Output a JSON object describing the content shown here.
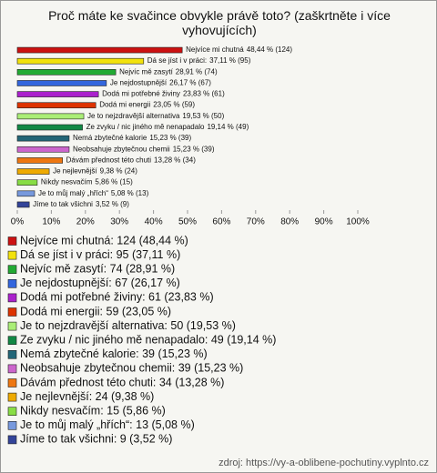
{
  "chart_data": {
    "type": "bar",
    "orientation": "horizontal",
    "title": "Proč máte ke svačince obvykle právě toto? (zaškrtněte i více vyhovujících)",
    "categories": [
      "Nejvíce mi chutná",
      "Dá se jíst i v práci:",
      "Nejvíc mě zasytí",
      "Je nejdostupnější",
      "Dodá mi potřebné živiny",
      "Dodá mi energii",
      "Je to nejzdravější alternativa",
      "Ze zvyku / nic jiného mě nenapadalo",
      "Nemá zbytečné kalorie",
      "Neobsahuje zbytečnou chemii",
      "Dávám přednost této chuti",
      "Je nejlevnější",
      "Nikdy nesvačím",
      "Je to můj malý „hřích“",
      "Jíme to tak všichni"
    ],
    "values": [
      48.44,
      37.11,
      28.91,
      26.17,
      23.83,
      23.05,
      19.53,
      19.14,
      15.23,
      15.23,
      13.28,
      9.38,
      5.86,
      5.08,
      3.52
    ],
    "value_labels": [
      "48,44 % (124)",
      "37,11 % (95)",
      "28,91 % (74)",
      "26,17 % (67)",
      "23,83 % (61)",
      "23,05 % (59)",
      "19,53 % (50)",
      "19,14 % (49)",
      "15,23 % (39)",
      "15,23 % (39)",
      "13,28 % (34)",
      "9,38 % (24)",
      "5,86 % (15)",
      "5,08 % (13)",
      "3,52 % (9)"
    ],
    "legend_labels": [
      "Nejvíce mi chutná: 124 (48,44 %)",
      "Dá se jíst i v práci: 95 (37,11 %)",
      "Nejvíc mě zasytí: 74 (28,91 %)",
      "Je nejdostupnější: 67 (26,17 %)",
      "Dodá mi potřebné živiny: 61 (23,83 %)",
      "Dodá mi energii: 59 (23,05 %)",
      "Je to nejzdravější alternativa: 50 (19,53 %)",
      "Ze zvyku / nic jiného mě nenapadalo: 49 (19,14 %)",
      "Nemá zbytečné kalorie: 39 (15,23 %)",
      "Neobsahuje zbytečnou chemii: 39 (15,23 %)",
      "Dávám přednost této chuti: 34 (13,28 %)",
      "Je nejlevnější: 24 (9,38 %)",
      "Nikdy nesvačím: 15 (5,86 %)",
      "Je to můj malý „hřích“: 13 (5,08 %)",
      "Jíme to tak všichni: 9 (3,52 %)"
    ],
    "colors": [
      "#cc1111",
      "#f2e20c",
      "#22aa33",
      "#3366dd",
      "#aa22cc",
      "#dd3300",
      "#aaee77",
      "#118844",
      "#226677",
      "#cc66cc",
      "#ee7711",
      "#eeaa00",
      "#88dd44",
      "#7799dd",
      "#334499"
    ],
    "xlim": [
      0,
      100
    ],
    "xticks": [
      {
        "value": 0,
        "label": "0%"
      },
      {
        "value": 10,
        "label": "10%"
      },
      {
        "value": 20,
        "label": "20%"
      },
      {
        "value": 30,
        "label": "30%"
      },
      {
        "value": 40,
        "label": "40%"
      },
      {
        "value": 50,
        "label": "50%"
      },
      {
        "value": 60,
        "label": "60%"
      },
      {
        "value": 70,
        "label": "70%"
      },
      {
        "value": 80,
        "label": "80%"
      },
      {
        "value": 90,
        "label": "90%"
      },
      {
        "value": 100,
        "label": "100%"
      }
    ],
    "source": "zdroj: https://vy-a-oblibene-pochutiny.vyplnto.cz"
  }
}
